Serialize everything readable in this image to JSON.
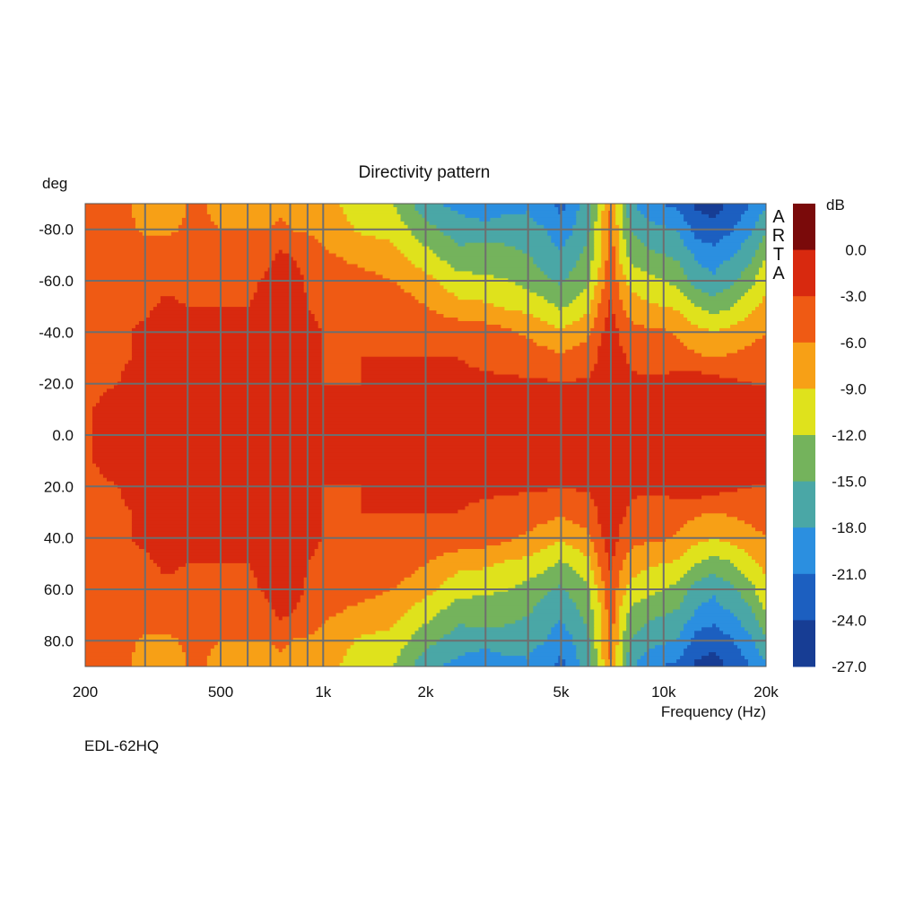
{
  "chart_data": {
    "type": "heatmap",
    "title": "Directivity pattern",
    "ylabel": "deg",
    "xlabel": "Frequency (Hz)",
    "device_label": "EDL-62HQ",
    "watermark": [
      "A",
      "R",
      "T",
      "A"
    ],
    "x_scale": "log",
    "xlim": [
      200,
      20000
    ],
    "ylim": [
      -90,
      90
    ],
    "y_inverted": true,
    "x_ticks": [
      {
        "value": 200,
        "label": "200"
      },
      {
        "value": 500,
        "label": "500"
      },
      {
        "value": 1000,
        "label": "1k"
      },
      {
        "value": 2000,
        "label": "2k"
      },
      {
        "value": 5000,
        "label": "5k"
      },
      {
        "value": 10000,
        "label": "10k"
      },
      {
        "value": 20000,
        "label": "20k"
      }
    ],
    "x_gridlines": [
      300,
      400,
      500,
      600,
      700,
      800,
      900,
      1000,
      2000,
      3000,
      4000,
      5000,
      6000,
      7000,
      8000,
      9000,
      10000
    ],
    "y_ticks": [
      {
        "value": -80,
        "label": "-80.0"
      },
      {
        "value": -60,
        "label": "-60.0"
      },
      {
        "value": -40,
        "label": "-40.0"
      },
      {
        "value": -20,
        "label": "-20.0"
      },
      {
        "value": 0,
        "label": "0.0"
      },
      {
        "value": 20,
        "label": "20.0"
      },
      {
        "value": 40,
        "label": "40.0"
      },
      {
        "value": 60,
        "label": "60.0"
      },
      {
        "value": 80,
        "label": "80.0"
      }
    ],
    "y_gridlines": [
      -80,
      -60,
      -40,
      -20,
      0,
      20,
      40,
      60,
      80
    ],
    "colorbar": {
      "unit": "dB",
      "levels": [
        {
          "label": "0.0",
          "value": 0
        },
        {
          "label": "-3.0",
          "value": -3
        },
        {
          "label": "-6.0",
          "value": -6
        },
        {
          "label": "-9.0",
          "value": -9
        },
        {
          "label": "-12.0",
          "value": -12
        },
        {
          "label": "-15.0",
          "value": -15
        },
        {
          "label": "-18.0",
          "value": -18
        },
        {
          "label": "-21.0",
          "value": -21
        },
        {
          "label": "-24.0",
          "value": -24
        },
        {
          "label": "-27.0",
          "value": -27
        }
      ],
      "colors": [
        "#7a0a0a",
        "#d8290f",
        "#ef5a14",
        "#f7a016",
        "#dfe21c",
        "#74b35c",
        "#4aa7a6",
        "#2b8fe0",
        "#1c5fc0",
        "#173d94"
      ]
    },
    "angles_deg": [
      -90,
      -80,
      -70,
      -60,
      -50,
      -40,
      -30,
      -20,
      -10,
      0
    ],
    "freqs_hz": [
      200,
      250,
      300,
      350,
      400,
      450,
      500,
      600,
      700,
      750,
      800,
      900,
      1000,
      1300,
      1600,
      2000,
      2500,
      3000,
      3500,
      4000,
      4500,
      5000,
      6000,
      6500,
      7000,
      7500,
      8000,
      9000,
      10000,
      11000,
      12500,
      14000,
      16000,
      18000,
      20000
    ],
    "level_db_rows": [
      [
        -4.5,
        -4.5,
        -8.0,
        -8.0,
        -6.0,
        -6.0,
        -7.0,
        -7.0,
        -7.5,
        -6.5,
        -7.0,
        -7.5,
        -8.0,
        -10.5,
        -12.0,
        -17.0,
        -19.0,
        -20.0,
        -19.0,
        -18.5,
        -20.0,
        -22.0,
        -16.0,
        -10.5,
        -6.0,
        -12.0,
        -17.5,
        -20.0,
        -21.0,
        -22.0,
        -24.5,
        -25.0,
        -23.5,
        -21.0,
        -18.5
      ],
      [
        -4.5,
        -4.5,
        -6.5,
        -6.5,
        -5.5,
        -5.5,
        -6.0,
        -6.0,
        -6.0,
        -5.5,
        -6.0,
        -6.5,
        -7.0,
        -9.5,
        -10.0,
        -14.0,
        -16.5,
        -17.0,
        -16.5,
        -17.0,
        -18.0,
        -20.0,
        -15.5,
        -10.0,
        -5.0,
        -11.0,
        -15.0,
        -17.0,
        -17.5,
        -18.0,
        -22.5,
        -23.5,
        -21.0,
        -18.5,
        -15.5
      ],
      [
        -4.0,
        -3.5,
        -4.0,
        -4.5,
        -4.5,
        -4.5,
        -4.5,
        -4.5,
        -3.5,
        -2.5,
        -3.0,
        -4.0,
        -5.5,
        -7.0,
        -8.0,
        -11.0,
        -14.0,
        -13.5,
        -14.0,
        -15.0,
        -16.5,
        -17.5,
        -14.0,
        -9.5,
        -4.0,
        -10.0,
        -13.0,
        -14.5,
        -15.0,
        -15.5,
        -18.5,
        -19.5,
        -18.0,
        -16.0,
        -12.0
      ],
      [
        -4.0,
        -3.5,
        -3.5,
        -3.5,
        -4.0,
        -4.0,
        -3.5,
        -3.5,
        -2.5,
        -0.8,
        -1.5,
        -3.5,
        -4.5,
        -5.0,
        -6.0,
        -8.0,
        -11.0,
        -11.5,
        -12.0,
        -13.0,
        -14.5,
        -15.5,
        -12.5,
        -8.0,
        -3.5,
        -7.5,
        -10.0,
        -11.0,
        -12.0,
        -13.0,
        -16.5,
        -17.5,
        -15.5,
        -13.0,
        -9.5
      ],
      [
        -4.0,
        -3.5,
        -3.5,
        -2.5,
        -3.0,
        -3.0,
        -3.0,
        -3.0,
        -2.5,
        -0.8,
        -0.8,
        -3.0,
        -3.5,
        -4.0,
        -4.0,
        -6.0,
        -8.0,
        -8.5,
        -9.5,
        -10.0,
        -11.0,
        -12.5,
        -10.0,
        -5.5,
        -2.5,
        -5.5,
        -7.5,
        -8.5,
        -9.0,
        -9.5,
        -12.0,
        -13.5,
        -12.0,
        -10.0,
        -8.0
      ],
      [
        -4.0,
        -3.5,
        -2.5,
        -1.5,
        -2.0,
        -1.5,
        -2.0,
        -2.5,
        -2.5,
        -1.5,
        -1.5,
        -2.5,
        -3.0,
        -3.5,
        -3.5,
        -4.0,
        -4.0,
        -4.5,
        -5.5,
        -6.5,
        -7.5,
        -8.5,
        -6.5,
        -3.5,
        -1.5,
        -3.5,
        -5.0,
        -5.5,
        -5.5,
        -6.5,
        -8.0,
        -9.0,
        -8.0,
        -7.0,
        -6.0
      ],
      [
        -4.0,
        -3.5,
        -2.5,
        -1.0,
        -2.5,
        -0.8,
        -2.0,
        -2.5,
        -2.5,
        -1.0,
        -1.0,
        -2.5,
        -3.0,
        -3.0,
        -3.0,
        -3.0,
        -3.0,
        -3.5,
        -4.0,
        -4.5,
        -5.0,
        -5.5,
        -4.5,
        -2.5,
        -0.8,
        -2.5,
        -3.5,
        -4.0,
        -4.0,
        -4.5,
        -5.5,
        -6.0,
        -5.5,
        -5.0,
        -4.5
      ],
      [
        -4.0,
        -3.0,
        -1.5,
        -0.8,
        -2.5,
        -2.5,
        -2.5,
        -2.5,
        -2.5,
        -0.8,
        -0.8,
        -2.5,
        -3.0,
        -3.0,
        -2.8,
        -2.6,
        -2.5,
        -2.5,
        -2.5,
        -2.5,
        -2.6,
        -2.8,
        -2.6,
        -1.8,
        -0.8,
        -2.2,
        -2.5,
        -2.6,
        -2.5,
        -1.5,
        -0.8,
        -1.5,
        -2.5,
        -3.0,
        -3.0
      ],
      [
        -3.5,
        -1.5,
        -0.8,
        -2.0,
        -2.5,
        -2.5,
        -2.5,
        -2.5,
        -2.5,
        -0.8,
        -0.8,
        -2.5,
        -2.6,
        -2.6,
        -2.4,
        -2.2,
        -2.1,
        -2.0,
        -2.0,
        -2.0,
        -2.0,
        -2.1,
        -2.0,
        -1.6,
        -1.0,
        -2.0,
        -2.3,
        -2.2,
        -1.5,
        -0.8,
        -0.6,
        -0.7,
        -1.5,
        -2.3,
        -2.0
      ],
      [
        -3.5,
        -0.8,
        -1.8,
        -2.2,
        -2.3,
        -2.3,
        -2.3,
        -2.3,
        -2.3,
        -0.8,
        -0.8,
        -2.3,
        -2.4,
        -2.3,
        -2.2,
        -2.0,
        -1.9,
        -1.8,
        -1.8,
        -1.8,
        -1.8,
        -1.9,
        -1.9,
        -1.5,
        -1.2,
        -1.9,
        -2.1,
        -2.0,
        -1.2,
        -0.6,
        -0.5,
        -0.6,
        -1.2,
        -2.0,
        -0.8
      ]
    ],
    "symmetric_about_0_deg": true
  }
}
